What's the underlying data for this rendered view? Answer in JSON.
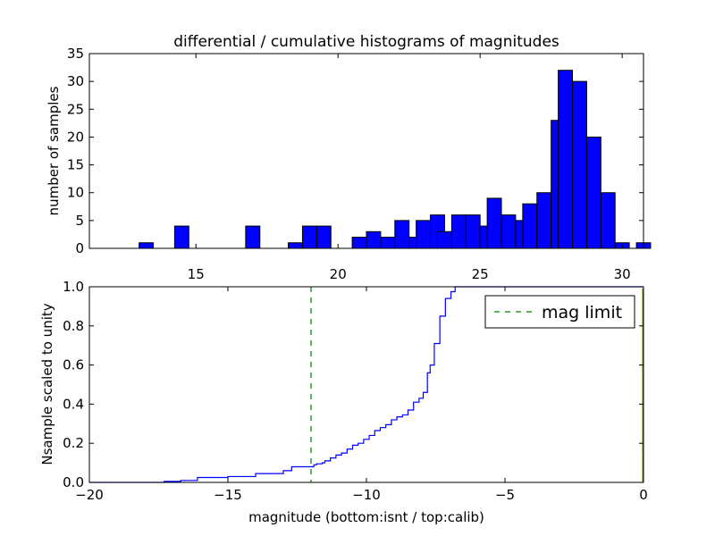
{
  "chart_data": [
    {
      "type": "bar",
      "title": "differential / cumulative histograms of magnitudes",
      "xlabel": "",
      "ylabel": "number of samples",
      "xlim": [
        11.25,
        30.75
      ],
      "ylim": [
        0,
        35
      ],
      "x_ticks": [
        15,
        20,
        25,
        30
      ],
      "y_ticks": [
        0,
        5,
        10,
        15,
        20,
        25,
        30,
        35
      ],
      "x_tick_position": "top-of-lower-axes",
      "bin_width": 0.5,
      "bar_color": "#0000ff",
      "bins": [
        {
          "x0": 13.0,
          "count": 1
        },
        {
          "x0": 14.25,
          "count": 4
        },
        {
          "x0": 16.75,
          "count": 4
        },
        {
          "x0": 18.25,
          "count": 1
        },
        {
          "x0": 18.75,
          "count": 4
        },
        {
          "x0": 19.25,
          "count": 4
        },
        {
          "x0": 20.5,
          "count": 2
        },
        {
          "x0": 21.0,
          "count": 3
        },
        {
          "x0": 21.5,
          "count": 2
        },
        {
          "x0": 22.0,
          "count": 5
        },
        {
          "x0": 22.5,
          "count": 2
        },
        {
          "x0": 22.75,
          "count": 5
        },
        {
          "x0": 23.25,
          "count": 6
        },
        {
          "x0": 23.5,
          "count": 3
        },
        {
          "x0": 24.0,
          "count": 6
        },
        {
          "x0": 24.5,
          "count": 6
        },
        {
          "x0": 25.0,
          "count": 4
        },
        {
          "x0": 25.25,
          "count": 9
        },
        {
          "x0": 25.75,
          "count": 6
        },
        {
          "x0": 26.25,
          "count": 5
        },
        {
          "x0": 26.5,
          "count": 8
        },
        {
          "x0": 27.0,
          "count": 10
        },
        {
          "x0": 27.5,
          "count": 23
        },
        {
          "x0": 27.75,
          "count": 32
        },
        {
          "x0": 28.25,
          "count": 30
        },
        {
          "x0": 28.75,
          "count": 20
        },
        {
          "x0": 29.25,
          "count": 10
        },
        {
          "x0": 29.75,
          "count": 1
        },
        {
          "x0": 30.5,
          "count": 1
        }
      ]
    },
    {
      "type": "line",
      "title": "",
      "xlabel": "magnitude (bottom:isnt / top:calib)",
      "ylabel": "Nsample scaled to unity",
      "xlim": [
        -20,
        0
      ],
      "ylim": [
        0,
        1.0
      ],
      "x_ticks": [
        -20,
        -15,
        -10,
        -5,
        0
      ],
      "x_tick_labels": [
        "−20",
        "−15",
        "−10",
        "−5",
        "0"
      ],
      "y_ticks": [
        0.0,
        0.2,
        0.4,
        0.6,
        0.8,
        1.0
      ],
      "y_tick_labels": [
        "0.0",
        "0.2",
        "0.4",
        "0.6",
        "0.8",
        "1.0"
      ],
      "legend": {
        "position": "top-right",
        "entries": [
          "mag limit"
        ]
      },
      "series": [
        {
          "color": "#0000ff",
          "style": "step",
          "points": [
            [
              -20,
              0.0
            ],
            [
              -17.3,
              0.0
            ],
            [
              -17.3,
              0.005
            ],
            [
              -16.7,
              0.005
            ],
            [
              -16.7,
              0.01
            ],
            [
              -16.1,
              0.01
            ],
            [
              -16.1,
              0.025
            ],
            [
              -15.0,
              0.025
            ],
            [
              -15.0,
              0.03
            ],
            [
              -14.0,
              0.03
            ],
            [
              -14.0,
              0.045
            ],
            [
              -13.0,
              0.045
            ],
            [
              -13.0,
              0.06
            ],
            [
              -12.7,
              0.06
            ],
            [
              -12.7,
              0.08
            ],
            [
              -11.9,
              0.08
            ],
            [
              -11.9,
              0.09
            ],
            [
              -11.8,
              0.09
            ],
            [
              -11.8,
              0.095
            ],
            [
              -11.6,
              0.095
            ],
            [
              -11.6,
              0.1
            ],
            [
              -11.5,
              0.1
            ],
            [
              -11.5,
              0.11
            ],
            [
              -11.3,
              0.11
            ],
            [
              -11.3,
              0.125
            ],
            [
              -11.1,
              0.125
            ],
            [
              -11.1,
              0.14
            ],
            [
              -10.9,
              0.14
            ],
            [
              -10.9,
              0.15
            ],
            [
              -10.7,
              0.15
            ],
            [
              -10.7,
              0.17
            ],
            [
              -10.5,
              0.17
            ],
            [
              -10.5,
              0.19
            ],
            [
              -10.3,
              0.19
            ],
            [
              -10.3,
              0.2
            ],
            [
              -10.1,
              0.2
            ],
            [
              -10.1,
              0.22
            ],
            [
              -9.9,
              0.22
            ],
            [
              -9.9,
              0.24
            ],
            [
              -9.7,
              0.24
            ],
            [
              -9.7,
              0.265
            ],
            [
              -9.5,
              0.265
            ],
            [
              -9.5,
              0.28
            ],
            [
              -9.3,
              0.28
            ],
            [
              -9.3,
              0.295
            ],
            [
              -9.1,
              0.295
            ],
            [
              -9.1,
              0.32
            ],
            [
              -8.9,
              0.32
            ],
            [
              -8.9,
              0.335
            ],
            [
              -8.7,
              0.335
            ],
            [
              -8.7,
              0.345
            ],
            [
              -8.5,
              0.345
            ],
            [
              -8.5,
              0.37
            ],
            [
              -8.3,
              0.37
            ],
            [
              -8.3,
              0.41
            ],
            [
              -8.1,
              0.41
            ],
            [
              -8.1,
              0.43
            ],
            [
              -7.95,
              0.43
            ],
            [
              -7.95,
              0.46
            ],
            [
              -7.8,
              0.46
            ],
            [
              -7.8,
              0.56
            ],
            [
              -7.7,
              0.56
            ],
            [
              -7.7,
              0.6
            ],
            [
              -7.55,
              0.6
            ],
            [
              -7.55,
              0.71
            ],
            [
              -7.35,
              0.71
            ],
            [
              -7.35,
              0.85
            ],
            [
              -7.15,
              0.85
            ],
            [
              -7.15,
              0.94
            ],
            [
              -6.95,
              0.94
            ],
            [
              -6.95,
              0.975
            ],
            [
              -6.8,
              0.975
            ],
            [
              -6.8,
              1.0
            ],
            [
              0,
              1.0
            ]
          ]
        },
        {
          "name": "mag limit",
          "color": "#008000",
          "style": "dashed-vertical",
          "x": -12.0
        }
      ]
    }
  ]
}
